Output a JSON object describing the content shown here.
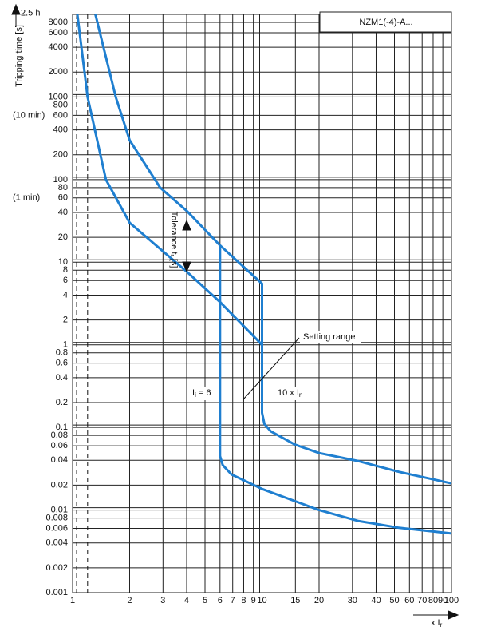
{
  "chart_data": {
    "type": "line",
    "title": "NZM1(-4)-A...",
    "y_label": "Tripping time [s]",
    "x_label": {
      "main": "x I",
      "sub": "r"
    },
    "log_x": true,
    "log_y": true,
    "grid": true,
    "xlim": [
      1,
      100
    ],
    "ylim": [
      0.001,
      10000
    ],
    "xticks": [
      1,
      2,
      3,
      4,
      5,
      6,
      7,
      8,
      9,
      10,
      15,
      20,
      30,
      40,
      50,
      60,
      70,
      80,
      90,
      100
    ],
    "yticks": [
      0.001,
      0.002,
      0.004,
      0.006,
      0.008,
      0.01,
      0.02,
      0.04,
      0.06,
      0.08,
      0.1,
      0.2,
      0.4,
      0.6,
      0.8,
      1,
      2,
      4,
      6,
      8,
      10,
      20,
      40,
      60,
      80,
      100,
      200,
      400,
      600,
      800,
      1000,
      2000,
      4000,
      6000,
      8000
    ],
    "time_marks": [
      {
        "value": 9000,
        "label": "2.5 h"
      },
      {
        "value": 600,
        "label": "(10 min)"
      },
      {
        "value": 60,
        "label": "(1 min)"
      }
    ],
    "dashed_lines": [
      1.05,
      1.2
    ],
    "color": "#1f7fd0",
    "series": [
      {
        "x": [
          1.32,
          1.69,
          2,
          2.9,
          4.04,
          6,
          10,
          10,
          10.3,
          11.1,
          14.9,
          20,
          32.4,
          52.7,
          100
        ],
        "values": [
          10000,
          1000,
          300,
          80,
          41,
          16,
          5.5,
          0.15,
          0.11,
          0.09,
          0.062,
          0.049,
          0.039,
          0.029,
          0.021
        ]
      },
      {
        "x": [
          1.06,
          1.2,
          1.5,
          2,
          4,
          6,
          10,
          10
        ],
        "values": [
          10000,
          1000,
          100,
          30,
          7.7,
          3.3,
          1.0,
          5.5
        ]
      },
      {
        "x": [
          6,
          6,
          6.2,
          6.9,
          10,
          20,
          32,
          53,
          100
        ],
        "values": [
          16,
          0.045,
          0.035,
          0.027,
          0.018,
          0.01,
          0.0074,
          0.0061,
          0.0052
        ]
      }
    ],
    "tolerance_label": {
      "main": "Tolerance t",
      "sub": "r",
      "rest": " [s]"
    },
    "setting_range": "Setting range",
    "ii_label": {
      "main": "I",
      "sub": "i",
      "rest": " = 6"
    },
    "in_label": {
      "main": "10 x I",
      "sub": "n"
    }
  }
}
